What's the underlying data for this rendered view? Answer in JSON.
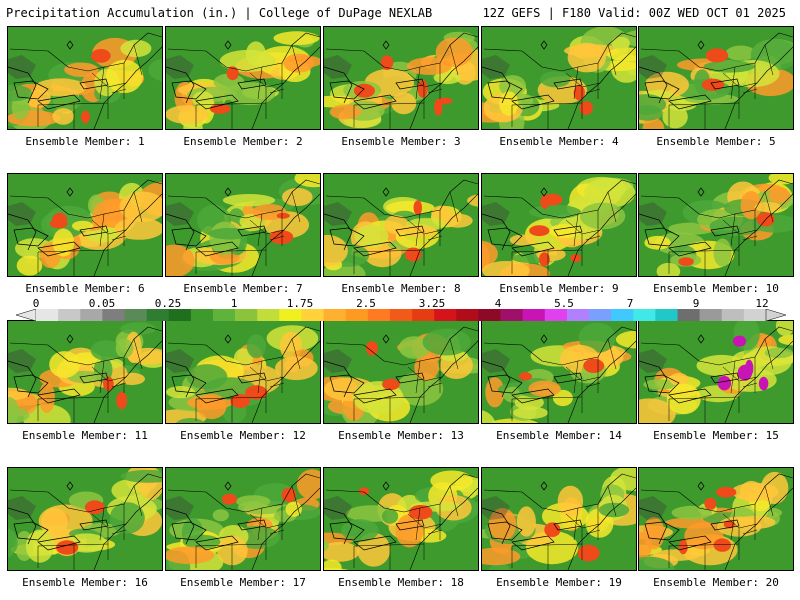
{
  "header": {
    "left": "Precipitation Accumulation (in.) | College of DuPage NEXLAB",
    "right": "12Z GEFS | F180 Valid: 00Z WED OCT 01 2025"
  },
  "members": [
    {
      "label": "Ensemble Member: 1"
    },
    {
      "label": "Ensemble Member: 2"
    },
    {
      "label": "Ensemble Member: 3"
    },
    {
      "label": "Ensemble Member: 4"
    },
    {
      "label": "Ensemble Member: 5"
    },
    {
      "label": "Ensemble Member: 6"
    },
    {
      "label": "Ensemble Member: 7"
    },
    {
      "label": "Ensemble Member: 8"
    },
    {
      "label": "Ensemble Member: 9"
    },
    {
      "label": "Ensemble Member: 10"
    },
    {
      "label": "Ensemble Member: 11"
    },
    {
      "label": "Ensemble Member: 12"
    },
    {
      "label": "Ensemble Member: 13"
    },
    {
      "label": "Ensemble Member: 14"
    },
    {
      "label": "Ensemble Member: 15"
    },
    {
      "label": "Ensemble Member: 16"
    },
    {
      "label": "Ensemble Member: 17"
    },
    {
      "label": "Ensemble Member: 18"
    },
    {
      "label": "Ensemble Member: 19"
    },
    {
      "label": "Ensemble Member: 20"
    }
  ],
  "colorbar": {
    "labels": [
      "0",
      "0.05",
      "0.25",
      "1",
      "1.75",
      "2.5",
      "3.25",
      "4",
      "5.5",
      "7",
      "9",
      "12"
    ],
    "colors": [
      "#e6e6e6",
      "#c8c8c8",
      "#a8a8a8",
      "#7e7e7e",
      "#5a8a5a",
      "#2e7d32",
      "#1f6f1f",
      "#3f9a2e",
      "#5fb33a",
      "#8bc43c",
      "#c2dc3a",
      "#f0f020",
      "#ffd23a",
      "#ffb030",
      "#ff9a20",
      "#ff7a20",
      "#f25a1a",
      "#e63c14",
      "#d4141a",
      "#b00c1a",
      "#8c0a28",
      "#a0106a",
      "#c814b4",
      "#e040f0",
      "#b080ff",
      "#7aa0ff",
      "#40c8ff",
      "#40e8e8",
      "#20c8c8",
      "#6e6e6e",
      "#9a9a9a",
      "#bebebe",
      "#d2d2d2"
    ]
  }
}
